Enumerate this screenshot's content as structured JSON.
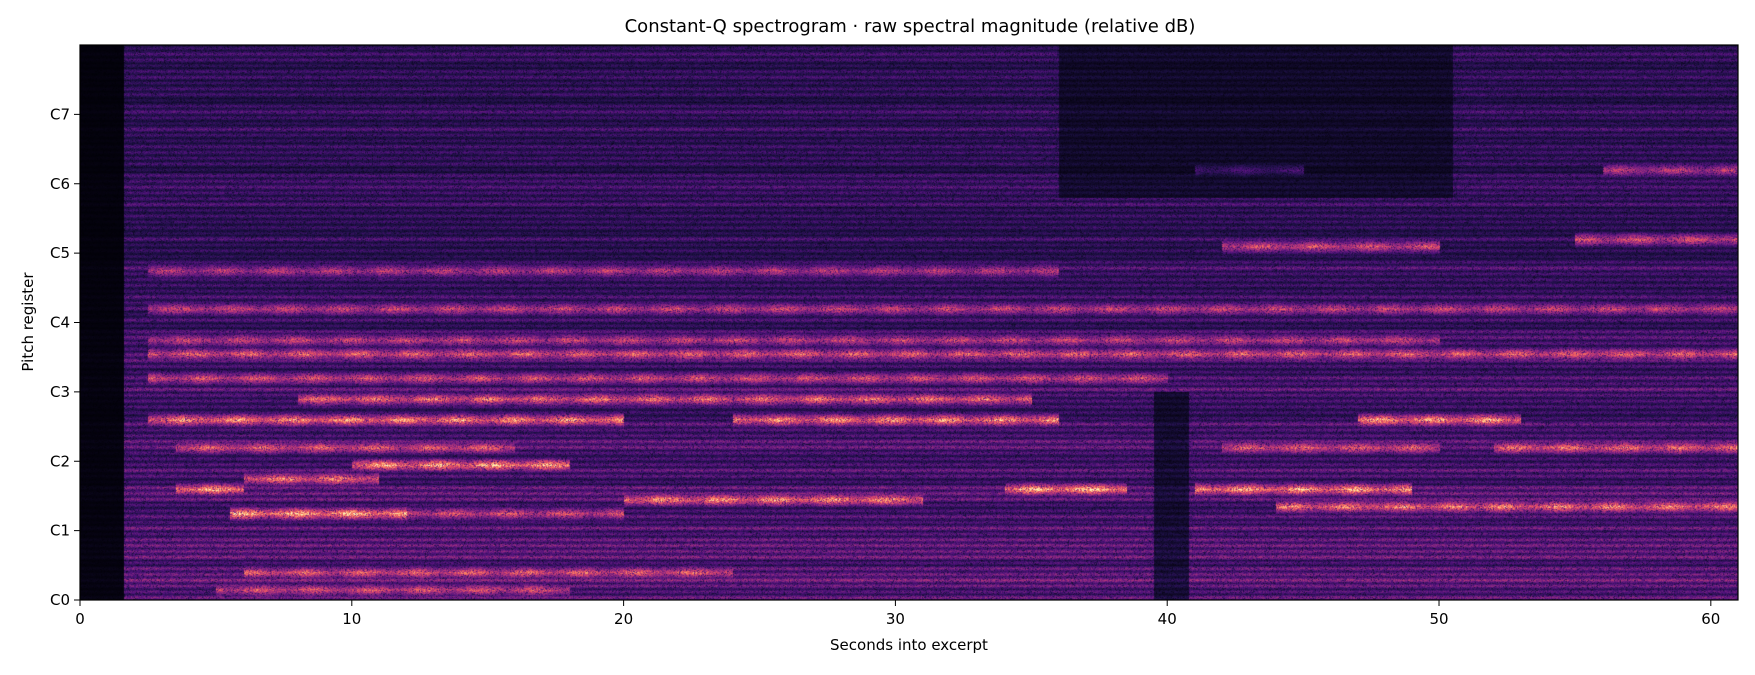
{
  "chart_data": {
    "type": "heatmap",
    "title": "Constant-Q spectrogram · raw spectral magnitude (relative dB)",
    "xlabel": "Seconds into excerpt",
    "ylabel": "Pitch register",
    "x_ticks": [
      0,
      10,
      20,
      30,
      40,
      50,
      60
    ],
    "y_ticks": [
      "C0",
      "C1",
      "C2",
      "C3",
      "C4",
      "C5",
      "C6",
      "C7"
    ],
    "xlim": [
      0,
      61
    ],
    "ylim_octaves": [
      0,
      8
    ],
    "colormap": "magma",
    "colormap_stops": [
      "#000004",
      "#1c1044",
      "#4f127b",
      "#812581",
      "#b5367a",
      "#e55064",
      "#fb8761",
      "#fec287",
      "#fcfdbf"
    ],
    "grid": false,
    "harmonic_bands": [
      {
        "octave": 0.15,
        "start": 5,
        "end": 18,
        "level": 0.55
      },
      {
        "octave": 0.4,
        "start": 6,
        "end": 24,
        "level": 0.6
      },
      {
        "octave": 1.25,
        "start": 5.5,
        "end": 12,
        "level": 0.85
      },
      {
        "octave": 1.25,
        "start": 12,
        "end": 20,
        "level": 0.55
      },
      {
        "octave": 1.45,
        "start": 20,
        "end": 31,
        "level": 0.75
      },
      {
        "octave": 1.6,
        "start": 3.5,
        "end": 6,
        "level": 0.8
      },
      {
        "octave": 1.6,
        "start": 34,
        "end": 38.5,
        "level": 0.85
      },
      {
        "octave": 1.6,
        "start": 41,
        "end": 49,
        "level": 0.8
      },
      {
        "octave": 1.35,
        "start": 44,
        "end": 51,
        "level": 0.7
      },
      {
        "octave": 1.35,
        "start": 51,
        "end": 61,
        "level": 0.7
      },
      {
        "octave": 1.75,
        "start": 6,
        "end": 11,
        "level": 0.7
      },
      {
        "octave": 1.95,
        "start": 10,
        "end": 18,
        "level": 0.8
      },
      {
        "octave": 2.2,
        "start": 3.5,
        "end": 16,
        "level": 0.6
      },
      {
        "octave": 2.2,
        "start": 42,
        "end": 50,
        "level": 0.6
      },
      {
        "octave": 2.2,
        "start": 52,
        "end": 61,
        "level": 0.65
      },
      {
        "octave": 2.6,
        "start": 2.5,
        "end": 20,
        "level": 0.75
      },
      {
        "octave": 2.6,
        "start": 24,
        "end": 36,
        "level": 0.75
      },
      {
        "octave": 2.6,
        "start": 47,
        "end": 53,
        "level": 0.8
      },
      {
        "octave": 2.9,
        "start": 8,
        "end": 35,
        "level": 0.65
      },
      {
        "octave": 3.2,
        "start": 2.5,
        "end": 40,
        "level": 0.55
      },
      {
        "octave": 3.55,
        "start": 2.5,
        "end": 61,
        "level": 0.6
      },
      {
        "octave": 3.75,
        "start": 2.5,
        "end": 50,
        "level": 0.5
      },
      {
        "octave": 4.2,
        "start": 2.5,
        "end": 61,
        "level": 0.5
      },
      {
        "octave": 4.75,
        "start": 2.5,
        "end": 36,
        "level": 0.45
      },
      {
        "octave": 5.1,
        "start": 42,
        "end": 50,
        "level": 0.55
      },
      {
        "octave": 5.2,
        "start": 55,
        "end": 61,
        "level": 0.55
      },
      {
        "octave": 6.2,
        "start": 41,
        "end": 45,
        "level": 0.45
      },
      {
        "octave": 6.2,
        "start": 56,
        "end": 61,
        "level": 0.45
      }
    ],
    "low_energy_regions": [
      {
        "start": 0,
        "end": 1.6,
        "depth": 0.9
      },
      {
        "start": 36,
        "end": 50.5,
        "min_octave": 5.8,
        "depth": 0.55
      },
      {
        "start": 39.5,
        "end": 40.8,
        "max_octave": 3,
        "depth": 0.6
      }
    ]
  }
}
